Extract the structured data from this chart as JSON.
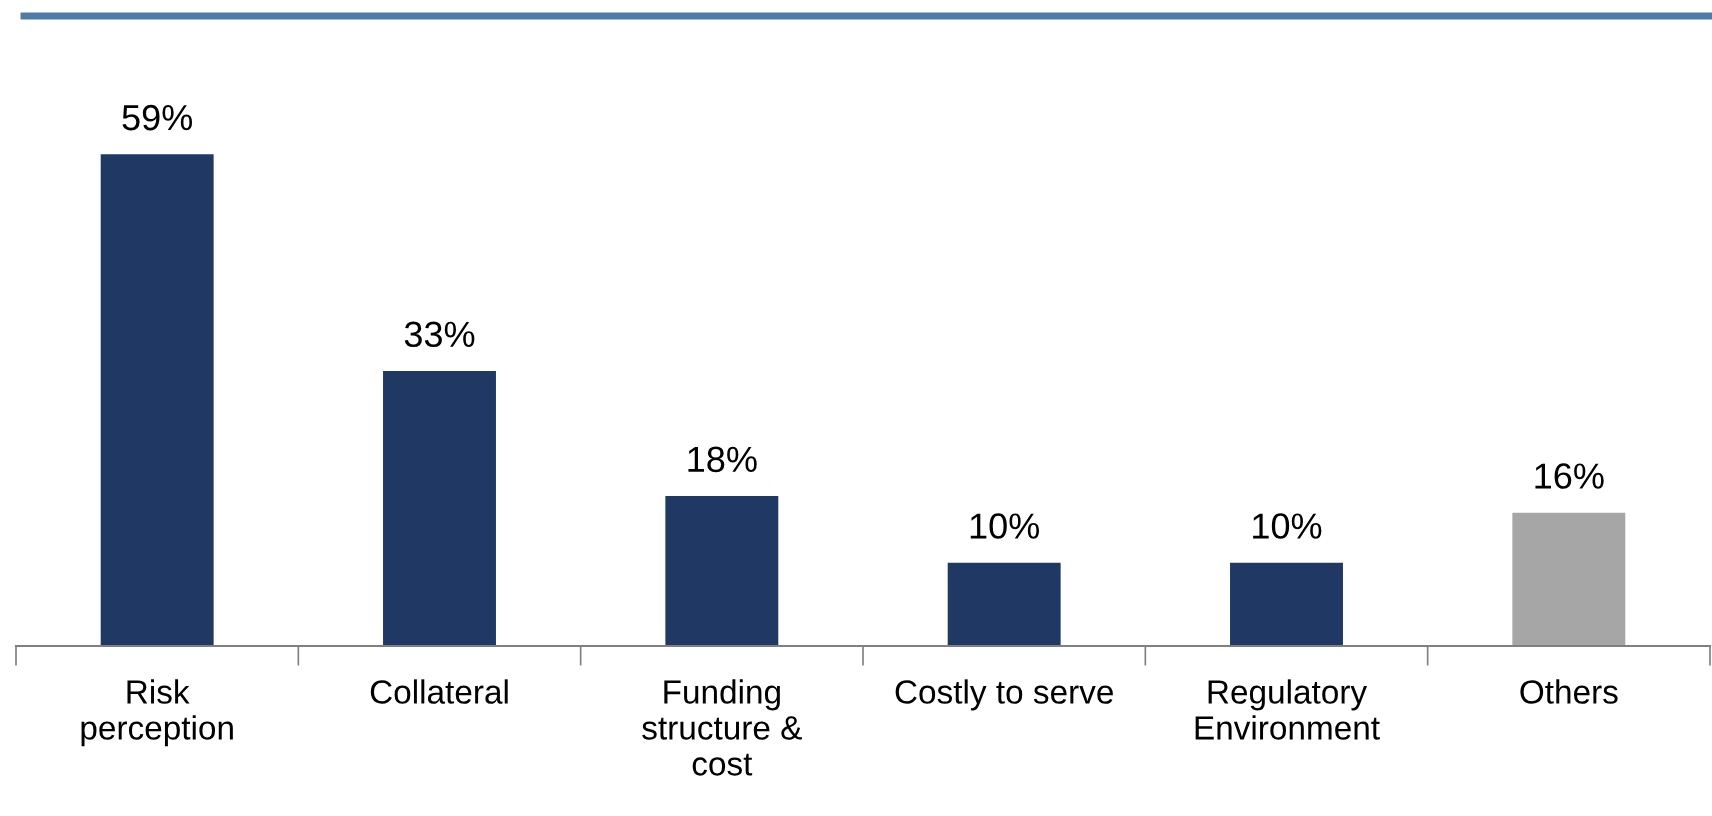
{
  "chart_data": {
    "type": "bar",
    "categories": [
      "Risk\nperception",
      "Collateral",
      "Funding\nstructure &\ncost",
      "Costly to serve",
      "Regulatory\nEnvironment",
      "Others"
    ],
    "values": [
      59,
      33,
      18,
      10,
      10,
      16
    ],
    "colors": [
      "#1f3864",
      "#1f3864",
      "#1f3864",
      "#1f3864",
      "#1f3864",
      "#a6a6a6"
    ],
    "value_labels": [
      "59%",
      "33%",
      "18%",
      "10%",
      "10%",
      "16%"
    ],
    "grid": false,
    "legend": false
  }
}
